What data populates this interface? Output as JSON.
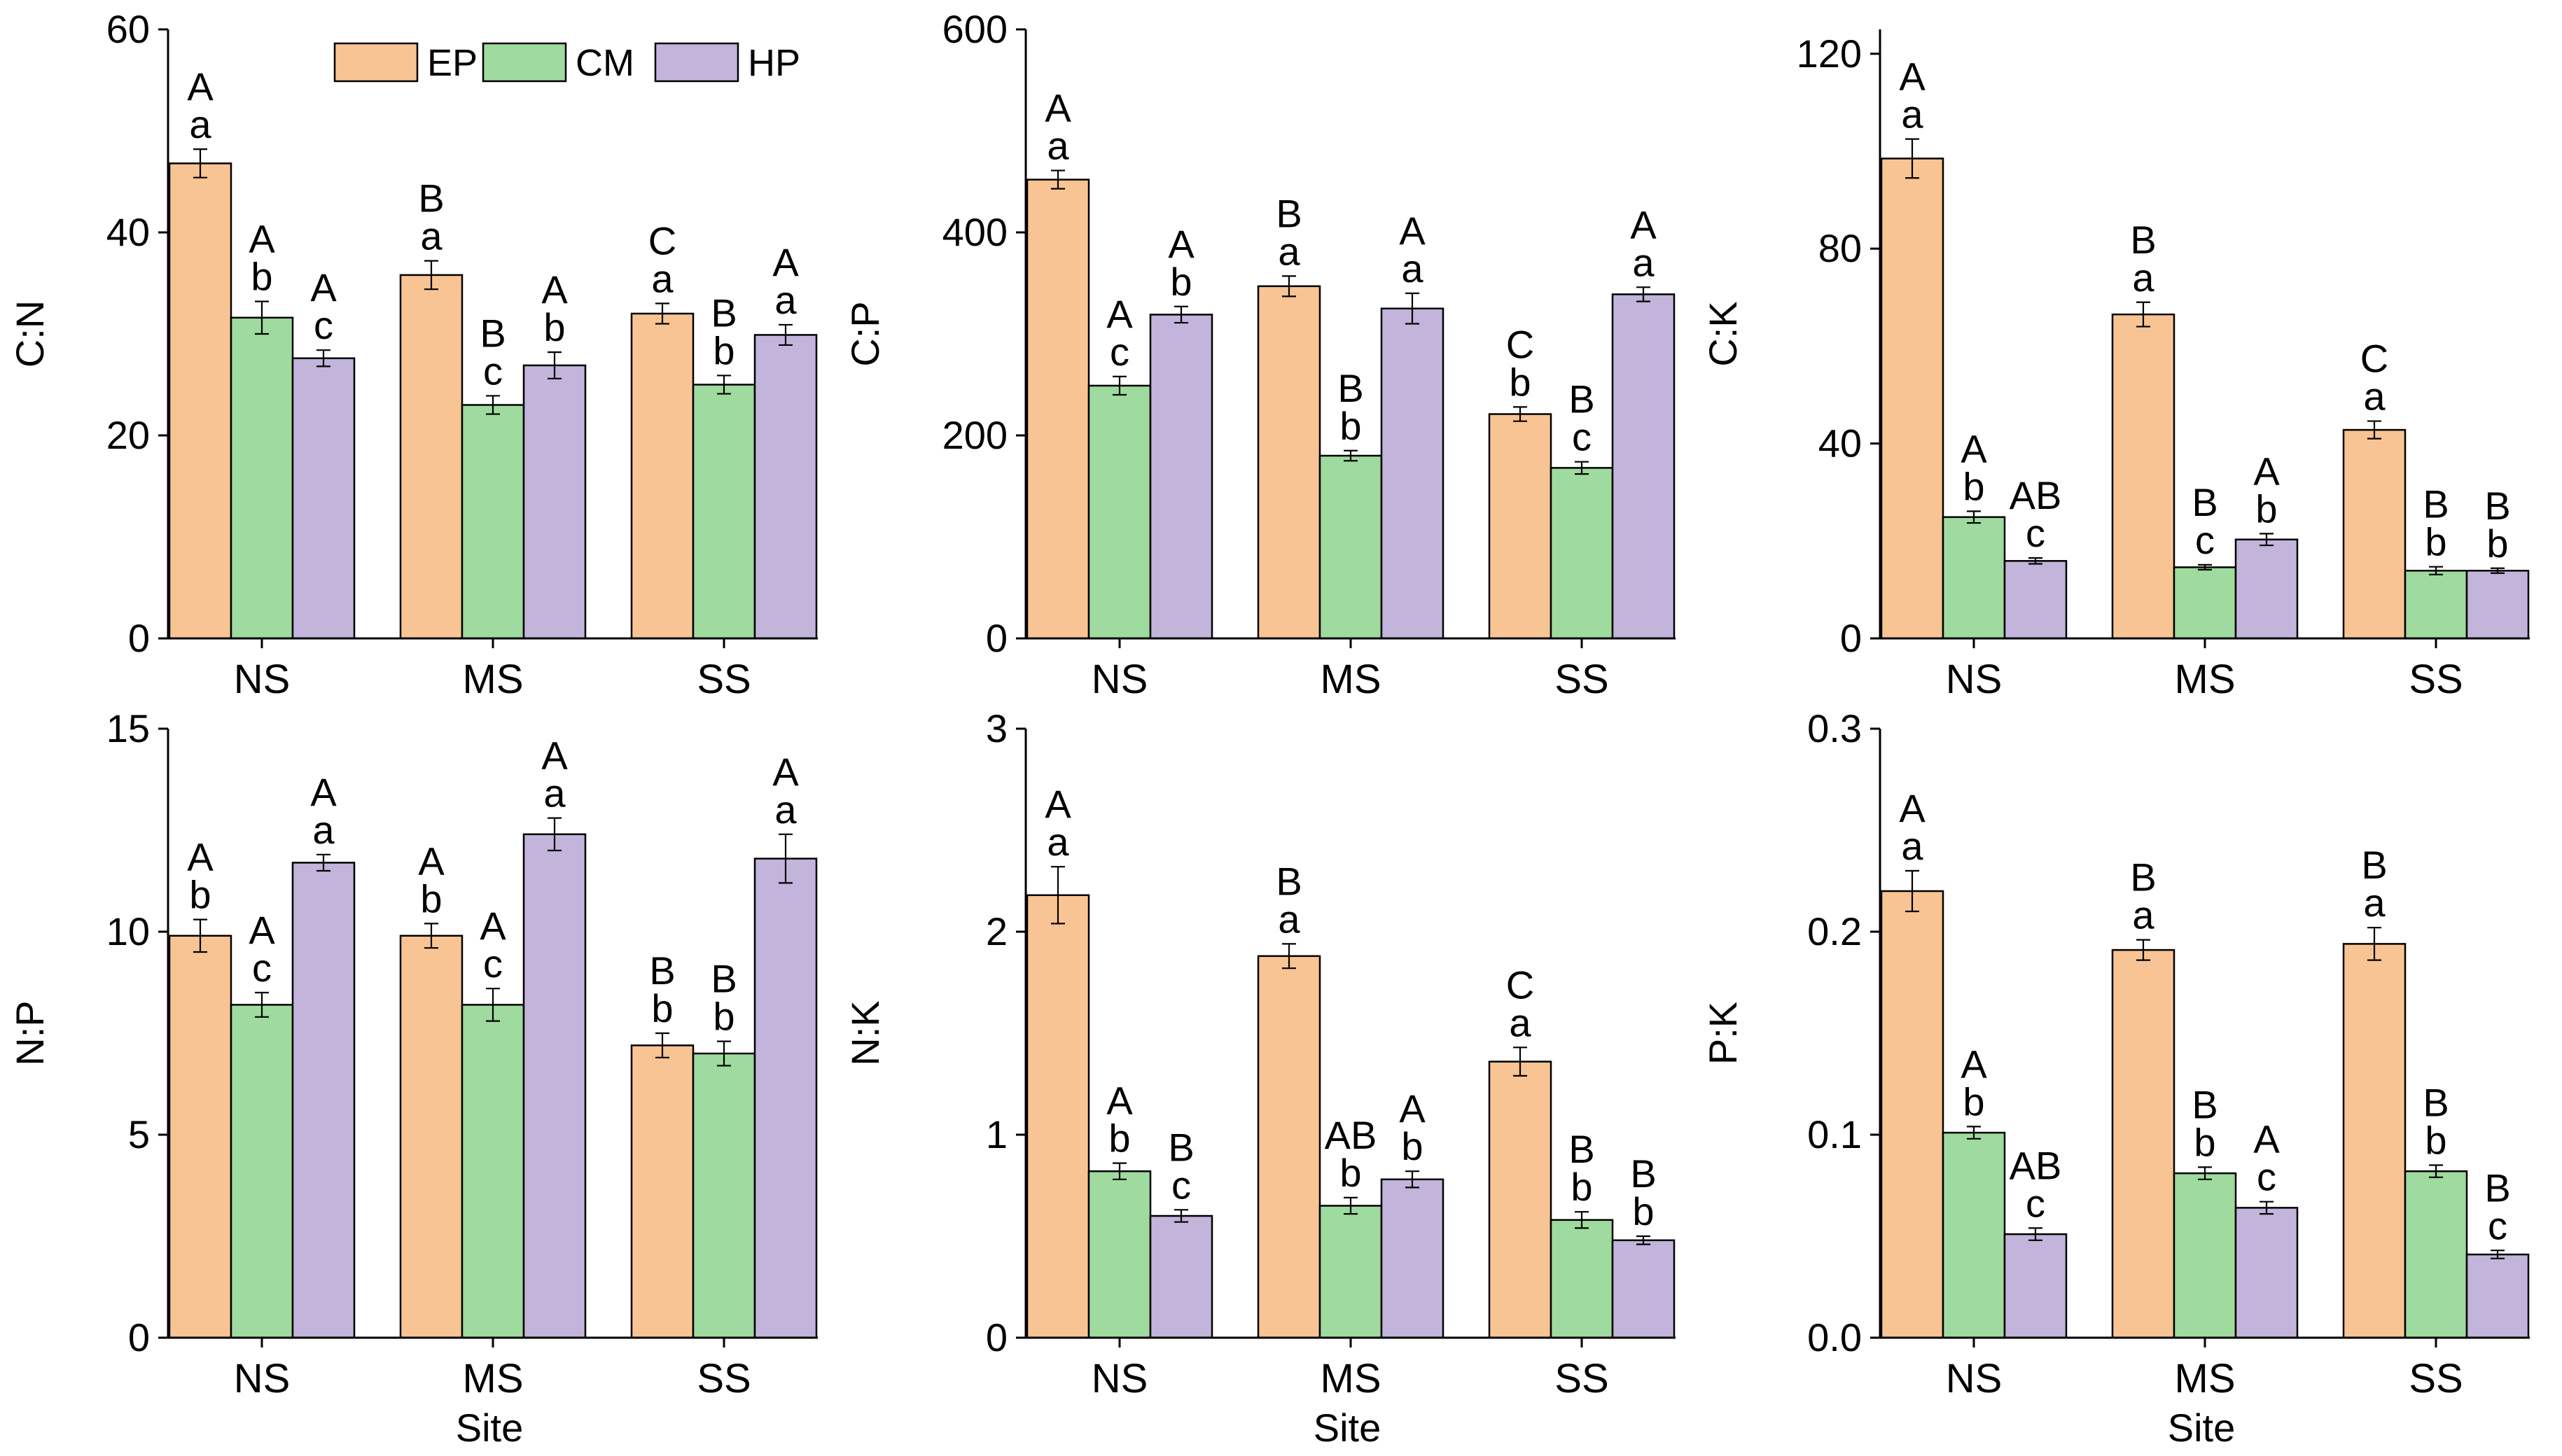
{
  "legend": [
    {
      "name": "EP",
      "color": "#F9C493"
    },
    {
      "name": "CM",
      "color": "#9FDA9E"
    },
    {
      "name": "HP",
      "color": "#C2B4DA"
    }
  ],
  "colors": {
    "axis": "#000000",
    "EP": "#F9C493",
    "CM": "#9FDA9E",
    "HP": "#C2B4DA"
  },
  "chart_data": [
    {
      "type": "bar",
      "title": "",
      "xlabel": "",
      "ylabel": "C:N",
      "categories": [
        "NS",
        "MS",
        "SS"
      ],
      "ylim": [
        0,
        60
      ],
      "yticks": [
        "0",
        "20",
        "40",
        "60"
      ],
      "legend_position": "top-right",
      "series": [
        {
          "name": "EP",
          "values": [
            46.8,
            35.8,
            32.0
          ],
          "errors": [
            1.4,
            1.4,
            1.0
          ],
          "letters": [
            [
              "A",
              "a"
            ],
            [
              "B",
              "a"
            ],
            [
              "C",
              "a"
            ]
          ]
        },
        {
          "name": "CM",
          "values": [
            31.6,
            23.0,
            25.0
          ],
          "errors": [
            1.6,
            0.9,
            0.9
          ],
          "letters": [
            [
              "A",
              "b"
            ],
            [
              "B",
              "c"
            ],
            [
              "B",
              "b"
            ]
          ]
        },
        {
          "name": "HP",
          "values": [
            27.6,
            26.9,
            29.9
          ],
          "errors": [
            0.8,
            1.3,
            1.0
          ],
          "letters": [
            [
              "A",
              "c"
            ],
            [
              "A",
              "b"
            ],
            [
              "A",
              "a"
            ]
          ]
        }
      ]
    },
    {
      "type": "bar",
      "title": "",
      "xlabel": "",
      "ylabel": "C:P",
      "categories": [
        "NS",
        "MS",
        "SS"
      ],
      "ylim": [
        0,
        600
      ],
      "yticks": [
        "0",
        "200",
        "400",
        "600"
      ],
      "series": [
        {
          "name": "EP",
          "values": [
            452,
            347,
            221
          ],
          "errors": [
            9,
            10,
            7
          ],
          "letters": [
            [
              "A",
              "a"
            ],
            [
              "B",
              "a"
            ],
            [
              "C",
              "b"
            ]
          ]
        },
        {
          "name": "CM",
          "values": [
            249,
            180,
            168
          ],
          "errors": [
            9,
            5,
            6
          ],
          "letters": [
            [
              "A",
              "c"
            ],
            [
              "B",
              "b"
            ],
            [
              "B",
              "c"
            ]
          ]
        },
        {
          "name": "HP",
          "values": [
            319,
            325,
            339
          ],
          "errors": [
            8,
            15,
            7
          ],
          "letters": [
            [
              "A",
              "b"
            ],
            [
              "A",
              "a"
            ],
            [
              "A",
              "a"
            ]
          ]
        }
      ]
    },
    {
      "type": "bar",
      "title": "",
      "xlabel": "",
      "ylabel": "C:K",
      "categories": [
        "NS",
        "MS",
        "SS"
      ],
      "ylim": [
        0,
        125
      ],
      "yticks": [
        "0",
        "40",
        "80",
        "120"
      ],
      "ytick_values": [
        0,
        40,
        80,
        120
      ],
      "series": [
        {
          "name": "EP",
          "values": [
            98.5,
            66.5,
            42.8
          ],
          "errors": [
            4.0,
            2.5,
            1.8
          ],
          "letters": [
            [
              "A",
              "a"
            ],
            [
              "B",
              "a"
            ],
            [
              "C",
              "a"
            ]
          ]
        },
        {
          "name": "CM",
          "values": [
            24.9,
            14.6,
            13.9
          ],
          "errors": [
            1.2,
            0.5,
            0.8
          ],
          "letters": [
            [
              "A",
              "b"
            ],
            [
              "B",
              "c"
            ],
            [
              "B",
              "b"
            ]
          ]
        },
        {
          "name": "HP",
          "values": [
            15.9,
            20.3,
            13.9
          ],
          "errors": [
            0.6,
            1.2,
            0.5
          ],
          "letters": [
            [
              "AB",
              "c"
            ],
            [
              "A",
              "b"
            ],
            [
              "B",
              "b"
            ]
          ]
        }
      ]
    },
    {
      "type": "bar",
      "title": "",
      "xlabel": "Site",
      "ylabel": "N:P",
      "categories": [
        "NS",
        "MS",
        "SS"
      ],
      "ylim": [
        0,
        15
      ],
      "yticks": [
        "0",
        "5",
        "10",
        "15"
      ],
      "series": [
        {
          "name": "EP",
          "values": [
            9.9,
            9.9,
            7.2
          ],
          "errors": [
            0.4,
            0.3,
            0.3
          ],
          "letters": [
            [
              "A",
              "b"
            ],
            [
              "A",
              "b"
            ],
            [
              "B",
              "b"
            ]
          ]
        },
        {
          "name": "CM",
          "values": [
            8.2,
            8.2,
            7.0
          ],
          "errors": [
            0.3,
            0.4,
            0.3
          ],
          "letters": [
            [
              "A",
              "c"
            ],
            [
              "A",
              "c"
            ],
            [
              "B",
              "b"
            ]
          ]
        },
        {
          "name": "HP",
          "values": [
            11.7,
            12.4,
            11.8
          ],
          "errors": [
            0.2,
            0.4,
            0.6
          ],
          "letters": [
            [
              "A",
              "a"
            ],
            [
              "A",
              "a"
            ],
            [
              "A",
              "a"
            ]
          ]
        }
      ]
    },
    {
      "type": "bar",
      "title": "",
      "xlabel": "Site",
      "ylabel": "N:K",
      "categories": [
        "NS",
        "MS",
        "SS"
      ],
      "ylim": [
        0,
        3
      ],
      "yticks": [
        "0",
        "1",
        "2",
        "3"
      ],
      "series": [
        {
          "name": "EP",
          "values": [
            2.18,
            1.88,
            1.36
          ],
          "errors": [
            0.14,
            0.06,
            0.07
          ],
          "letters": [
            [
              "A",
              "a"
            ],
            [
              "B",
              "a"
            ],
            [
              "C",
              "a"
            ]
          ]
        },
        {
          "name": "CM",
          "values": [
            0.82,
            0.65,
            0.58
          ],
          "errors": [
            0.04,
            0.04,
            0.04
          ],
          "letters": [
            [
              "A",
              "b"
            ],
            [
              "AB",
              "b"
            ],
            [
              "B",
              "b"
            ]
          ]
        },
        {
          "name": "HP",
          "values": [
            0.6,
            0.78,
            0.48
          ],
          "errors": [
            0.03,
            0.04,
            0.02
          ],
          "letters": [
            [
              "B",
              "c"
            ],
            [
              "A",
              "b"
            ],
            [
              "B",
              "b"
            ]
          ]
        }
      ]
    },
    {
      "type": "bar",
      "title": "",
      "xlabel": "Site",
      "ylabel": "P:K",
      "categories": [
        "NS",
        "MS",
        "SS"
      ],
      "ylim": [
        0,
        0.3
      ],
      "yticks": [
        "0.0",
        "0.1",
        "0.2",
        "0.3"
      ],
      "series": [
        {
          "name": "EP",
          "values": [
            0.22,
            0.191,
            0.194
          ],
          "errors": [
            0.01,
            0.005,
            0.008
          ],
          "letters": [
            [
              "A",
              "a"
            ],
            [
              "B",
              "a"
            ],
            [
              "B",
              "a"
            ]
          ]
        },
        {
          "name": "CM",
          "values": [
            0.101,
            0.081,
            0.082
          ],
          "errors": [
            0.003,
            0.003,
            0.003
          ],
          "letters": [
            [
              "A",
              "b"
            ],
            [
              "B",
              "b"
            ],
            [
              "B",
              "b"
            ]
          ]
        },
        {
          "name": "HP",
          "values": [
            0.051,
            0.064,
            0.041
          ],
          "errors": [
            0.003,
            0.003,
            0.002
          ],
          "letters": [
            [
              "AB",
              "c"
            ],
            [
              "A",
              "c"
            ],
            [
              "B",
              "c"
            ]
          ]
        }
      ]
    }
  ]
}
